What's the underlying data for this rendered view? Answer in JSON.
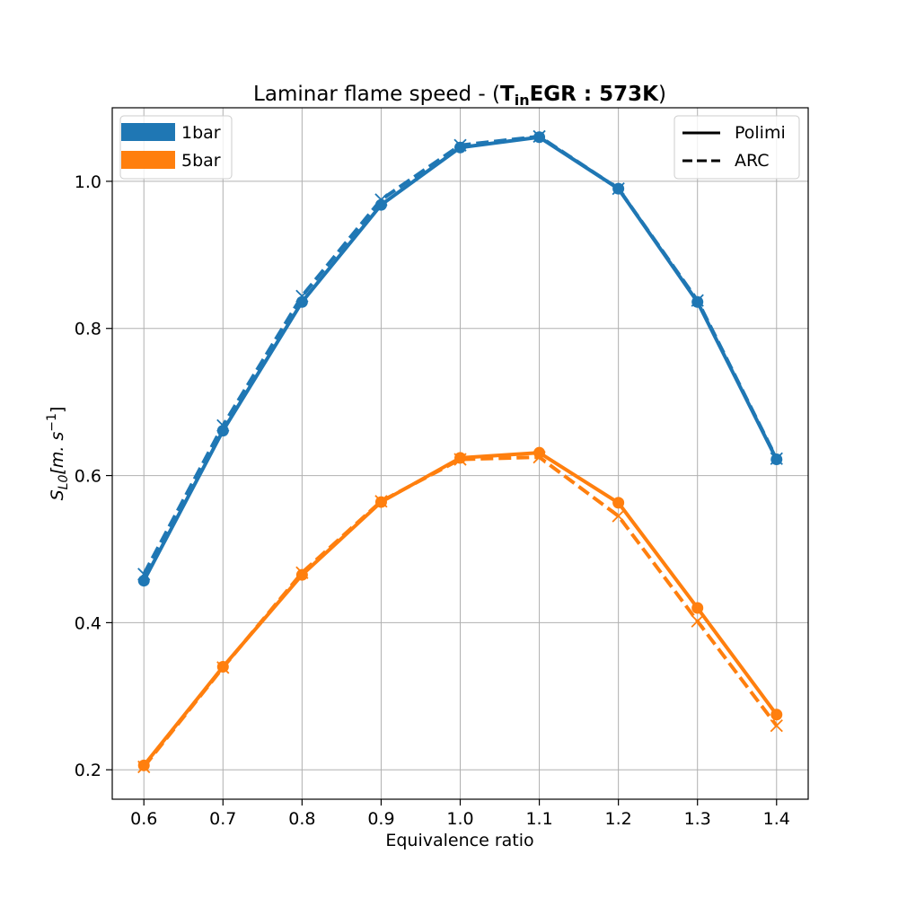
{
  "chart_data": {
    "type": "line",
    "title": {
      "prefix": "Laminar flame speed - (",
      "bold_main": "T",
      "bold_sub": "in",
      "bold_rest": "EGR : 573K",
      "suffix": ")"
    },
    "xlabel": "Equivalence ratio",
    "ylabel": {
      "main": "S",
      "sub": "L0",
      "bracket": "[m. s",
      "sup": "−1",
      "close": "]"
    },
    "x": [
      0.6,
      0.7,
      0.8,
      0.9,
      1.0,
      1.1,
      1.2,
      1.3,
      1.4
    ],
    "xlim": [
      0.56,
      1.44
    ],
    "ylim": [
      0.16,
      1.1
    ],
    "xticks": [
      "0.6",
      "0.7",
      "0.8",
      "0.9",
      "1.0",
      "1.1",
      "1.2",
      "1.3",
      "1.4"
    ],
    "yticks": [
      "0.2",
      "0.4",
      "0.6",
      "0.8",
      "1.0"
    ],
    "grid": true,
    "series": [
      {
        "name": "1bar",
        "mechanism": "Polimi",
        "color": "#1f77b4",
        "style": "solid",
        "marker": "circle",
        "values": [
          0.457,
          0.661,
          0.836,
          0.968,
          1.046,
          1.06,
          0.99,
          0.836,
          0.622
        ]
      },
      {
        "name": "1bar",
        "mechanism": "ARC",
        "color": "#1f77b4",
        "style": "dashed",
        "marker": "x",
        "values": [
          0.466,
          0.668,
          0.844,
          0.975,
          1.049,
          1.061,
          0.99,
          0.838,
          0.623
        ]
      },
      {
        "name": "5bar",
        "mechanism": "Polimi",
        "color": "#ff7f0e",
        "style": "solid",
        "marker": "circle",
        "values": [
          0.206,
          0.34,
          0.465,
          0.564,
          0.624,
          0.631,
          0.563,
          0.42,
          0.275
        ]
      },
      {
        "name": "5bar",
        "mechanism": "ARC",
        "color": "#ff7f0e",
        "style": "dashed",
        "marker": "x",
        "values": [
          0.204,
          0.339,
          0.468,
          0.565,
          0.622,
          0.625,
          0.545,
          0.402,
          0.26
        ]
      }
    ],
    "legend_colors": {
      "placement": "top-left",
      "entries": [
        {
          "label": "1bar",
          "color": "#1f77b4"
        },
        {
          "label": "5bar",
          "color": "#ff7f0e"
        }
      ]
    },
    "legend_styles": {
      "placement": "top-right",
      "entries": [
        {
          "label": "Polimi",
          "style": "solid"
        },
        {
          "label": "ARC",
          "style": "dashed"
        }
      ]
    }
  }
}
